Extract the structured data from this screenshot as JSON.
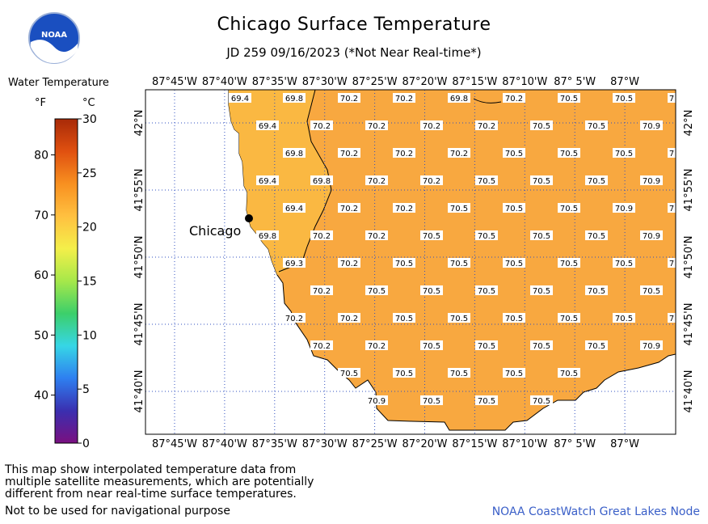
{
  "header": {
    "title": "Chicago Surface Temperature",
    "subtitle": "JD 259 09/16/2023 (*Not Near Real-time*)"
  },
  "logo": {
    "icon": "noaa-logo-icon",
    "text": "NOAA"
  },
  "legend": {
    "title": "Water Temperature",
    "unit_f": "°F",
    "unit_c": "°C",
    "ticks_f": [
      "80",
      "70",
      "60",
      "50",
      "40"
    ],
    "ticks_c": [
      "30",
      "25",
      "20",
      "15",
      "10",
      "5",
      "0"
    ],
    "range_c": [
      0,
      30
    ],
    "colors": [
      "#7a1080",
      "#3a2fb0",
      "#2e7ff0",
      "#36d6e6",
      "#3ccf6a",
      "#a6e84a",
      "#f4ef4a",
      "#ffc040",
      "#f89020",
      "#e05010",
      "#a82a08"
    ]
  },
  "map": {
    "city_label": "Chicago",
    "lon_labels": [
      "87°45'W",
      "87°40'W",
      "87°35'W",
      "87°30'W",
      "87°25'W",
      "87°20'W",
      "87°15'W",
      "87°10'W",
      "87° 5'W",
      "87°W"
    ],
    "lat_labels": [
      "42°N",
      "41°55'N",
      "41°50'N",
      "41°45'N",
      "41°40'N"
    ],
    "water_color": "#f8a840",
    "rows": [
      [
        "69.4",
        "69.8",
        "70.2",
        "70.2",
        "69.8",
        "70.2",
        "70.5",
        "70.5",
        "7"
      ],
      [
        "69.4",
        "70.2",
        "70.2",
        "70.2",
        "70.2",
        "70.5",
        "70.5",
        "70.9"
      ],
      [
        "69.8",
        "70.2",
        "70.2",
        "70.2",
        "70.5",
        "70.5",
        "70.5",
        "7"
      ],
      [
        "69.4",
        "69.8",
        "70.2",
        "70.2",
        "70.5",
        "70.5",
        "70.5",
        "70.9"
      ],
      [
        "69.4",
        "70.2",
        "70.2",
        "70.5",
        "70.5",
        "70.5",
        "70.9",
        "7"
      ],
      [
        "69.8",
        "70.2",
        "70.2",
        "70.5",
        "70.5",
        "70.5",
        "70.5",
        "70.9"
      ],
      [
        "69.3",
        "70.2",
        "70.5",
        "70.5",
        "70.5",
        "70.5",
        "70.5",
        "7"
      ],
      [
        "70.2",
        "70.5",
        "70.5",
        "70.5",
        "70.5",
        "70.5",
        "70.5"
      ],
      [
        "70.2",
        "70.2",
        "70.5",
        "70.5",
        "70.5",
        "70.5",
        "70.5",
        "7"
      ],
      [
        "70.2",
        "70.2",
        "70.5",
        "70.5",
        "70.5",
        "70.5",
        "70.9"
      ],
      [
        "70.5",
        "70.5",
        "70.5",
        "70.5",
        "70.5"
      ],
      [
        "70.9",
        "70.5",
        "70.5",
        "70.5"
      ]
    ]
  },
  "footer": {
    "note_lines": [
      "This map show interpolated temperature data from",
      "multiple satellite measurements, which are potentially",
      "different from near real-time surface temperatures."
    ],
    "warning": "Not to be used for navigational purpose",
    "credit": "NOAA CoastWatch Great Lakes Node"
  }
}
